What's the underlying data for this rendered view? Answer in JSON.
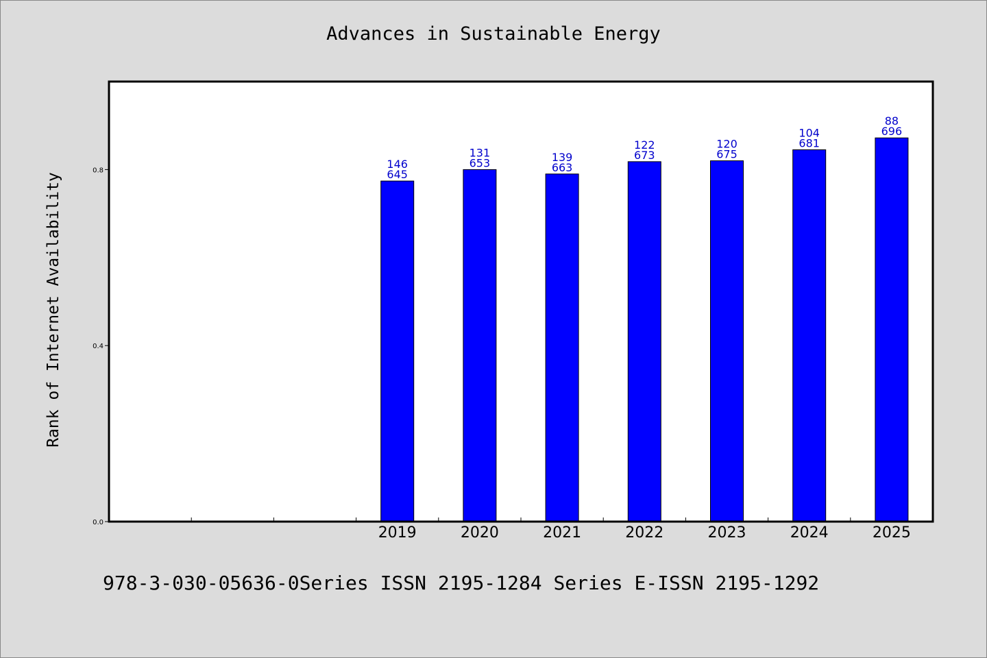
{
  "chart_data": {
    "type": "bar",
    "title": "Advances in Sustainable Energy",
    "ylabel": "Rank of Internet Availability",
    "xlabel": "",
    "categories": [
      "",
      "",
      "",
      "2019",
      "2020",
      "2021",
      "2022",
      "2023",
      "2024",
      "2025"
    ],
    "values": [
      null,
      null,
      null,
      0.774,
      0.8,
      0.79,
      0.818,
      0.82,
      0.845,
      0.872
    ],
    "data_labels": [
      null,
      null,
      null,
      [
        "146",
        "645"
      ],
      [
        "131",
        "653"
      ],
      [
        "139",
        "663"
      ],
      [
        "122",
        "673"
      ],
      [
        "120",
        "675"
      ],
      [
        "104",
        "681"
      ],
      [
        "88",
        "696"
      ]
    ],
    "yticks": [
      {
        "value": 0.0,
        "label": "0.0"
      },
      {
        "value": 0.4,
        "label": "0.4"
      },
      {
        "value": 0.8,
        "label": "0.8"
      }
    ],
    "ylim": [
      0,
      1.0
    ],
    "grid": false,
    "bar_color": "#0000ff",
    "label_color": "#0000cc"
  },
  "footer": {
    "note": "978-3-030-05636-0Series ISSN 2195-1284 Series E-ISSN 2195-1292"
  }
}
